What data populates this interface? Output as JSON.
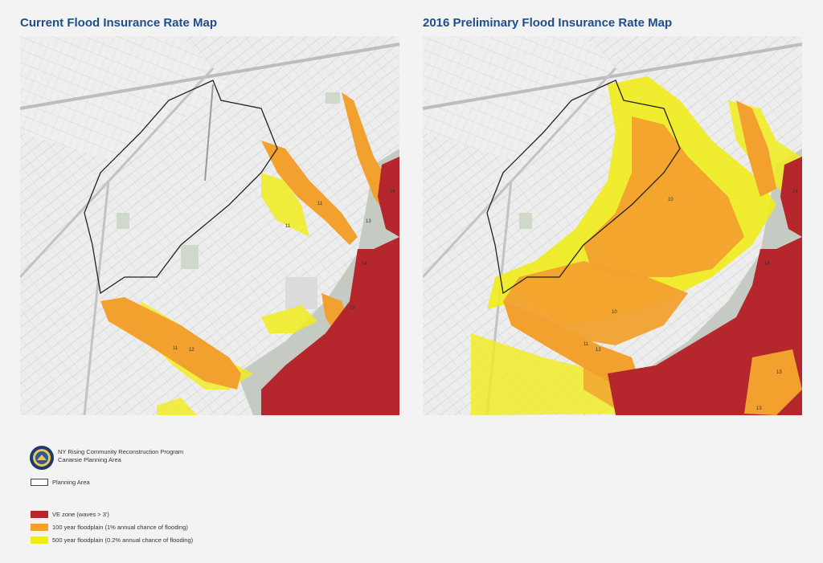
{
  "maps": {
    "left_title": "Current Flood Insurance Rate Map",
    "right_title": "2016 Preliminary Flood Insurance Rate Map"
  },
  "program": {
    "line1": "NY Rising Community Reconstruction Program",
    "line2": "Canarsie Planning Area"
  },
  "legend": {
    "planning_area": "Planning Area",
    "ve_zone": "VE zone (waves > 3')",
    "floodplain_100": "100 year floodplain (1% annual chance of flooding)",
    "floodplain_500": "500 year floodplain (0.2% annual chance of flooding)"
  },
  "colors": {
    "ve_zone": "#b5272d",
    "floodplain_100": "#f2a12e",
    "floodplain_500": "#f0ec1c",
    "water": "#c5cbc3",
    "land": "#ededed"
  },
  "icons": [
    "nys-seal-icon"
  ]
}
